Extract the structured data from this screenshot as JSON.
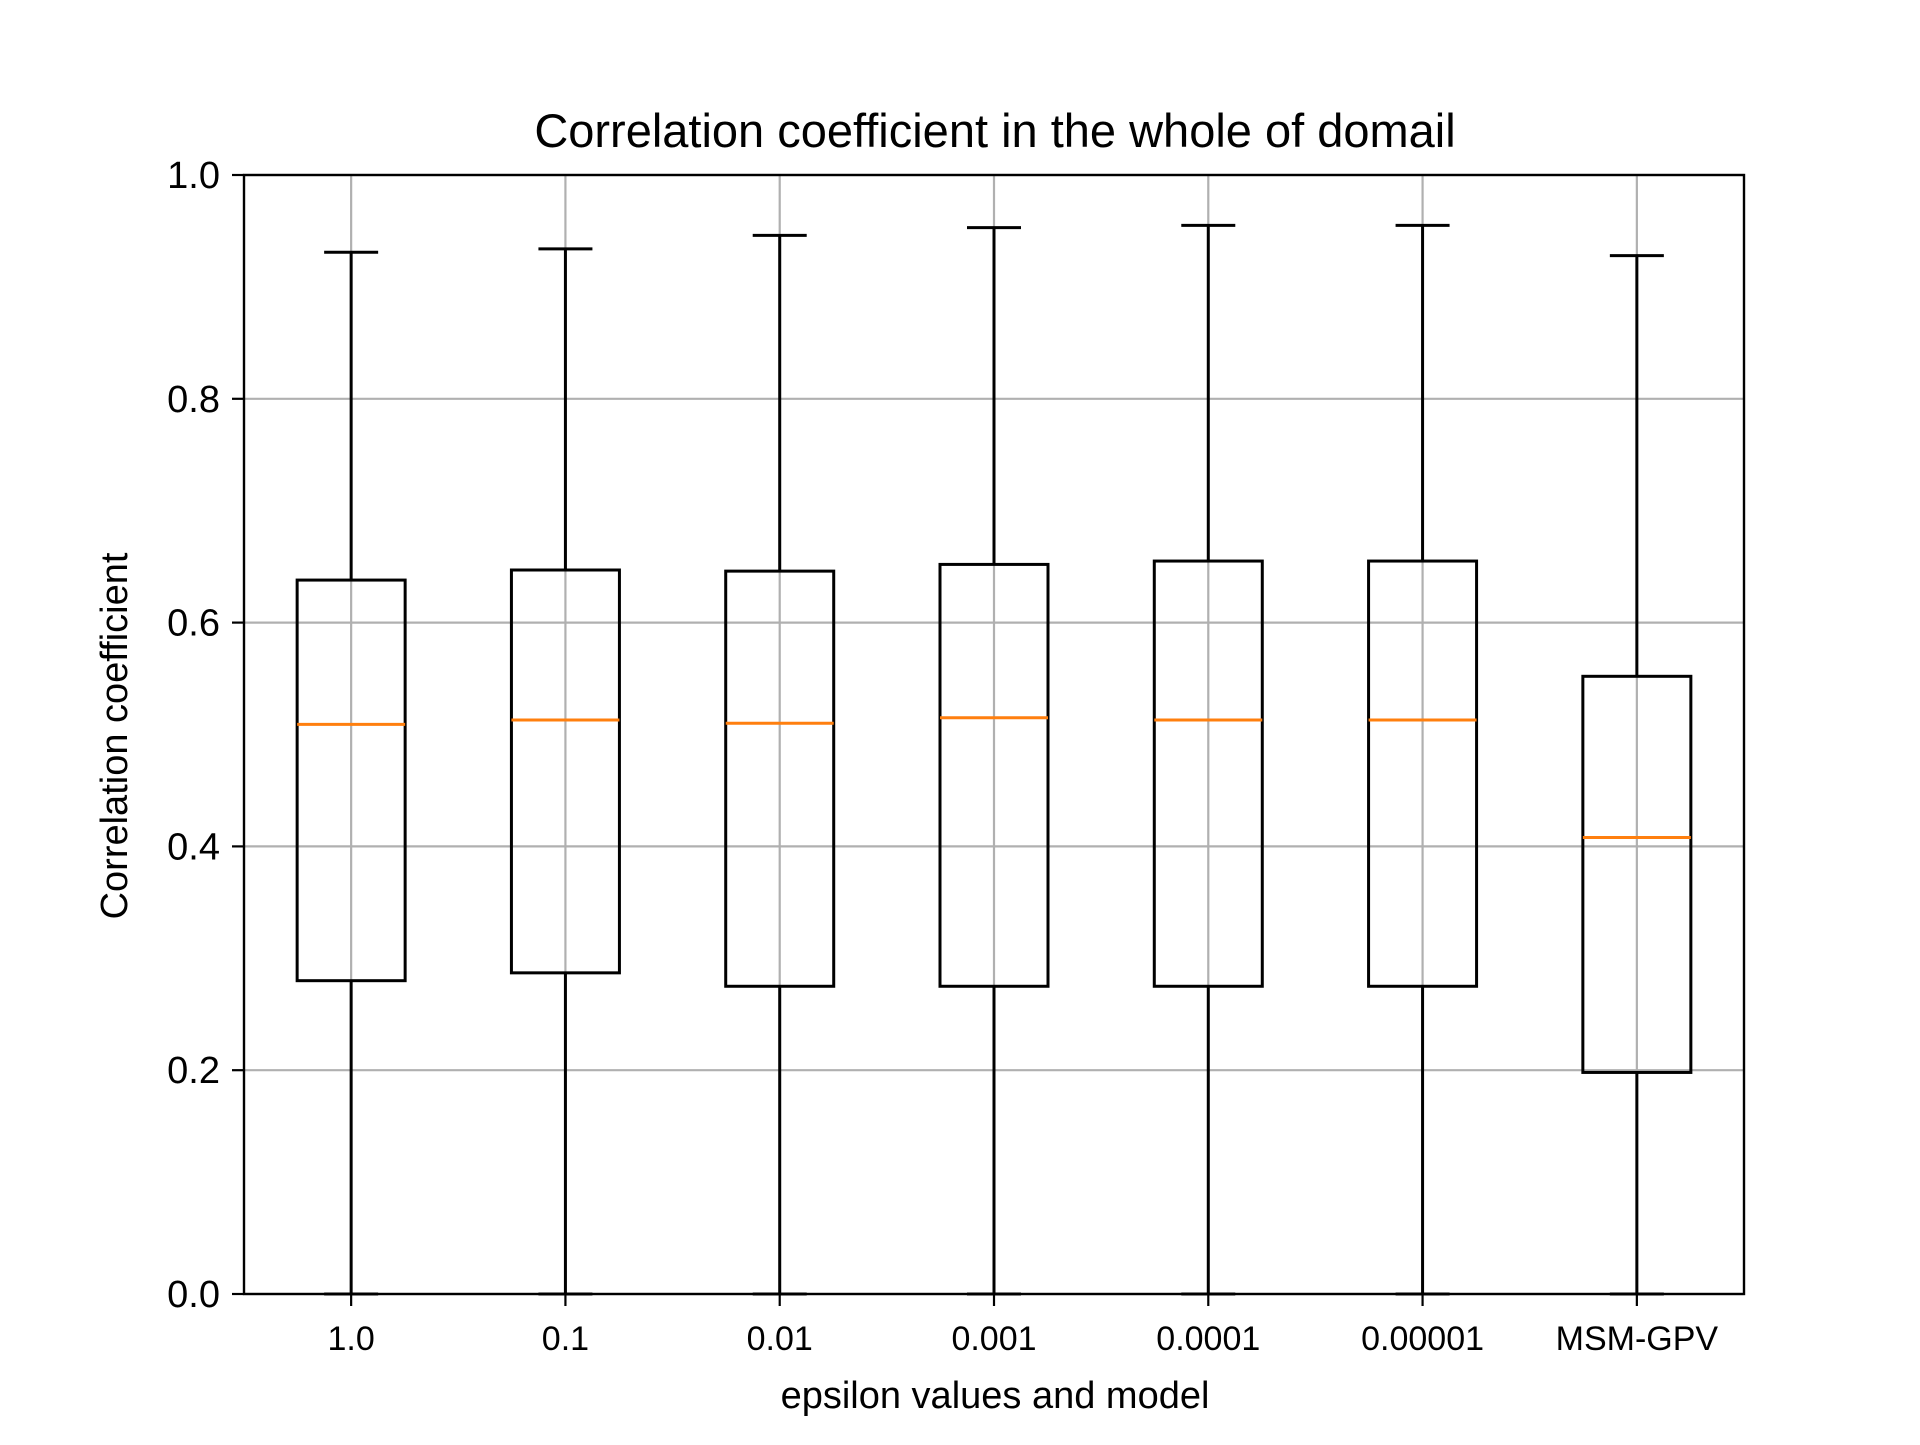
{
  "chart_data": {
    "type": "box",
    "title": "Correlation coefficient in the whole of domail",
    "xlabel": "epsilon values and model",
    "ylabel": "Correlation coefficient",
    "ylim": [
      0.0,
      1.0
    ],
    "yticks": [
      "0.0",
      "0.2",
      "0.4",
      "0.6",
      "0.8",
      "1.0"
    ],
    "grid": true,
    "categories": [
      "1.0",
      "0.1",
      "0.01",
      "0.001",
      "0.0001",
      "0.00001",
      "MSM-GPV"
    ],
    "boxes": [
      {
        "category": "1.0",
        "whisker_low": 0.0,
        "q1": 0.28,
        "median": 0.509,
        "q3": 0.638,
        "whisker_high": 0.931
      },
      {
        "category": "0.1",
        "whisker_low": 0.0,
        "q1": 0.287,
        "median": 0.513,
        "q3": 0.647,
        "whisker_high": 0.934
      },
      {
        "category": "0.01",
        "whisker_low": 0.0,
        "q1": 0.275,
        "median": 0.51,
        "q3": 0.646,
        "whisker_high": 0.946
      },
      {
        "category": "0.001",
        "whisker_low": 0.0,
        "q1": 0.275,
        "median": 0.515,
        "q3": 0.652,
        "whisker_high": 0.953
      },
      {
        "category": "0.0001",
        "whisker_low": 0.0,
        "q1": 0.275,
        "median": 0.513,
        "q3": 0.655,
        "whisker_high": 0.955
      },
      {
        "category": "0.00001",
        "whisker_low": 0.0,
        "q1": 0.275,
        "median": 0.513,
        "q3": 0.655,
        "whisker_high": 0.955
      },
      {
        "category": "MSM-GPV",
        "whisker_low": 0.0,
        "q1": 0.198,
        "median": 0.408,
        "q3": 0.552,
        "whisker_high": 0.928
      }
    ],
    "colors": {
      "box": "#000000",
      "median": "#ff7f0e",
      "grid": "#b0b0b0"
    }
  }
}
